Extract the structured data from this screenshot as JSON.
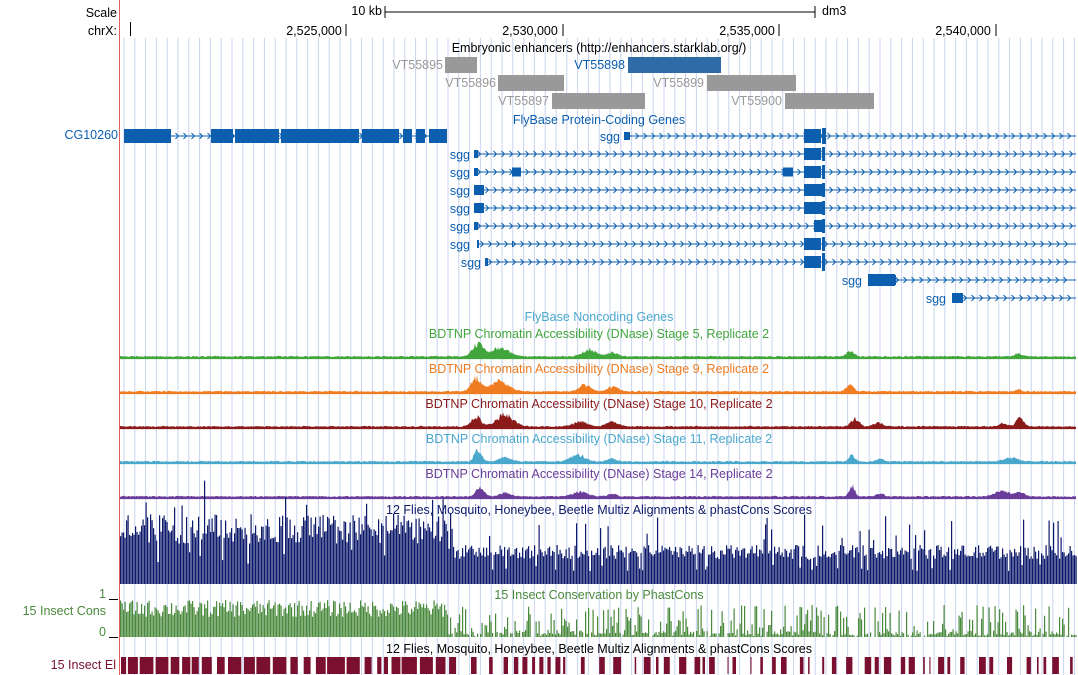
{
  "ruler": {
    "scale_label": "Scale",
    "chr_label": "chrX:",
    "scale_bar_label": "10 kb",
    "assembly": "dm3",
    "ticks": [
      "2,525,000",
      "2,530,000",
      "2,535,000",
      "2,540,000"
    ]
  },
  "enhancers": {
    "title": "Embryonic enhancers (http://enhancers.starklab.org/)",
    "items": [
      {
        "label": "VT55895",
        "highlight": false
      },
      {
        "label": "VT55896",
        "highlight": false
      },
      {
        "label": "VT55897",
        "highlight": false
      },
      {
        "label": "VT55898",
        "highlight": true
      },
      {
        "label": "VT55899",
        "highlight": false
      },
      {
        "label": "VT55900",
        "highlight": false
      }
    ]
  },
  "genes": {
    "title": "FlyBase Protein-Coding Genes",
    "names": [
      "CG10260",
      "sgg",
      "sgg",
      "sgg",
      "sgg",
      "sgg",
      "sgg",
      "sgg",
      "sgg",
      "sgg",
      "sgg",
      "sgg"
    ]
  },
  "noncoding": {
    "title": "FlyBase Noncoding Genes"
  },
  "dnase": [
    {
      "title": "BDTNP Chromatin Accessibility (DNase) Stage 5, Replicate 2",
      "color": "#41a63c"
    },
    {
      "title": "BDTNP Chromatin Accessibility (DNase) Stage 9, Replicate 2",
      "color": "#f07c22"
    },
    {
      "title": "BDTNP Chromatin Accessibility (DNase) Stage 10, Replicate 2",
      "color": "#8b1a1a"
    },
    {
      "title": "BDTNP Chromatin Accessibility (DNase) Stage 11, Replicate 2",
      "color": "#4aa8cc"
    },
    {
      "title": "BDTNP Chromatin Accessibility (DNase) Stage 14, Replicate 2",
      "color": "#6a3d9a"
    }
  ],
  "multiz": {
    "title": "12 Flies, Mosquito, Honeybee, Beetle Multiz Alignments & phastCons Scores",
    "color": "#0d1a6b"
  },
  "phastcons": {
    "title": "15 Insect Conservation by PhastCons",
    "side_label": "15 Insect Cons",
    "axis_max": "1",
    "axis_min": "0",
    "color": "#4a8a3c"
  },
  "elements": {
    "title": "12 Flies, Mosquito, Honeybee, Beetle Multiz Alignments & phastCons Scores",
    "side_label": "15 Insect El",
    "color": "#7a1030"
  },
  "colors": {
    "gene": "#0c5fae",
    "enhancer_gray": "#999999",
    "enhancer_hl": "#2f6ba7",
    "grid": "#c8d4f0",
    "left_margin": "#e06060"
  }
}
